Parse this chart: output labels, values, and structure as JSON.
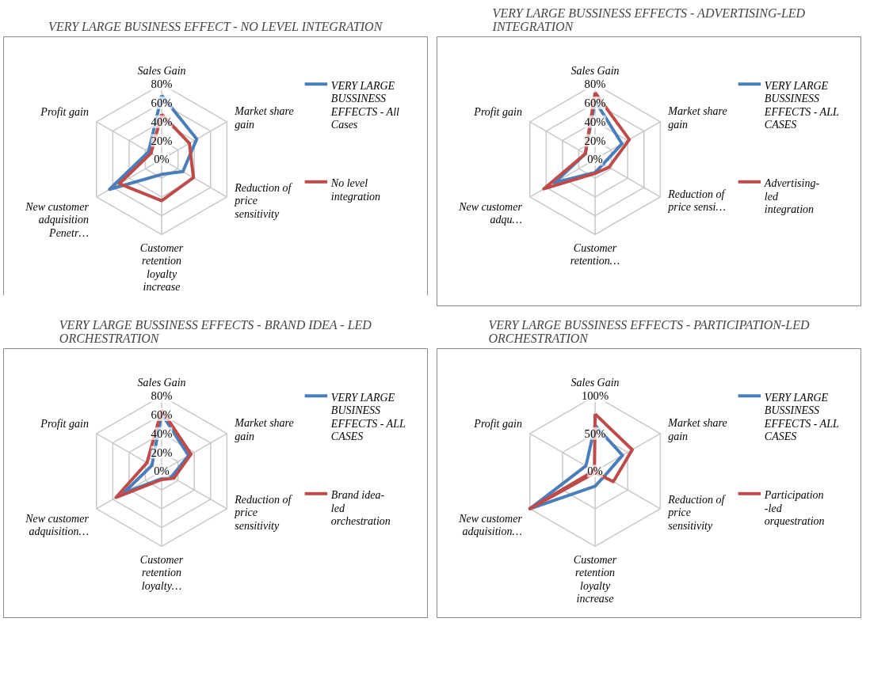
{
  "chart_data": [
    {
      "type": "radar",
      "title": "VERY LARGE BUSINESS EFFECT - NO LEVEL INTEGRATION",
      "categories": [
        "Sales Gain",
        "Market share gain",
        "Reduction of price sensitivity",
        "Customer retention loyalty increase",
        "New customer adquisition Penetr…",
        "Profit gain"
      ],
      "ylim": [
        0,
        80
      ],
      "yticks": [
        {
          "value": 0,
          "label": "0%"
        },
        {
          "value": 20,
          "label": "20%"
        },
        {
          "value": 40,
          "label": "40%"
        },
        {
          "value": 60,
          "label": "60%"
        },
        {
          "value": 80,
          "label": "80%"
        }
      ],
      "legend": "right",
      "series": [
        {
          "name": "VERY LARGE BUSSINESS EFFECTS - All Cases",
          "color": "#4a7ebb",
          "values": [
            68,
            43,
            26,
            16,
            64,
            16
          ]
        },
        {
          "name": "No level integration",
          "color": "#be4b48",
          "values": [
            48,
            34,
            39,
            44,
            52,
            13
          ]
        }
      ]
    },
    {
      "type": "radar",
      "title": "VERY LARGE BUSSINESS EFFECTS - ADVERTISING-LED INTEGRATION",
      "categories": [
        "Sales Gain",
        "Market share gain",
        "Reduction of price sensi…",
        "Customer retention…",
        "New customer adqu…",
        "Profit gain"
      ],
      "ylim": [
        0,
        80
      ],
      "yticks": [
        {
          "value": 0,
          "label": "0%"
        },
        {
          "value": 20,
          "label": "20%"
        },
        {
          "value": 40,
          "label": "40%"
        },
        {
          "value": 60,
          "label": "60%"
        },
        {
          "value": 80,
          "label": "80%"
        }
      ],
      "legend": "right",
      "series": [
        {
          "name": "VERY LARGE BUSSINESS EFFECTS - ALL CASES",
          "color": "#4a7ebb",
          "values": [
            62,
            33,
            10,
            14,
            50,
            12
          ]
        },
        {
          "name": "Advertising-led integration",
          "color": "#be4b48",
          "values": [
            71,
            42,
            17,
            15,
            63,
            12
          ]
        }
      ]
    },
    {
      "type": "radar",
      "title": "VERY LARGE BUSSINESS EFFECTS - BRAND IDEA - LED ORCHESTRATION",
      "categories": [
        "Sales Gain",
        "Market share gain",
        "Reduction of price sensitivity",
        "Customer retention loyalty…",
        "New customer adquisition…",
        "Profit gain"
      ],
      "ylim": [
        0,
        80
      ],
      "yticks": [
        {
          "value": 0,
          "label": "0%"
        },
        {
          "value": 20,
          "label": "20%"
        },
        {
          "value": 40,
          "label": "40%"
        },
        {
          "value": 60,
          "label": "60%"
        },
        {
          "value": 80,
          "label": "80%"
        }
      ],
      "legend": "right",
      "series": [
        {
          "name": "VERY LARGE BUSINESS EFFECTS - ALL CASES",
          "color": "#4a7ebb",
          "values": [
            61,
            33,
            12,
            8,
            47,
            12
          ]
        },
        {
          "name": "Brand idea-led orchestration",
          "color": "#be4b48",
          "values": [
            65,
            36,
            15,
            9,
            56,
            18
          ]
        }
      ]
    },
    {
      "type": "radar",
      "title": "VERY LARGE BUSSINESS EFFECTS - PARTICIPATION-LED ORCHESTRATION",
      "categories": [
        "Sales Gain",
        "Market share gain",
        "Reduction of price sensitivity",
        "Customer retention loyalty increase",
        "New customer adquisition…",
        "Profit gain"
      ],
      "ylim": [
        0,
        100
      ],
      "yticks": [
        {
          "value": 0,
          "label": "0%"
        },
        {
          "value": 50,
          "label": "50%"
        },
        {
          "value": 100,
          "label": "100%"
        }
      ],
      "legend": "right",
      "series": [
        {
          "name": "VERY LARGE BUSSINESS EFFECTS - ALL CASES",
          "color": "#4a7ebb",
          "values": [
            61,
            42,
            14,
            20,
            100,
            14
          ]
        },
        {
          "name": "Participation-led orquestration",
          "color": "#be4b48",
          "values": [
            76,
            57,
            28,
            2,
            100,
            1
          ]
        }
      ]
    }
  ]
}
